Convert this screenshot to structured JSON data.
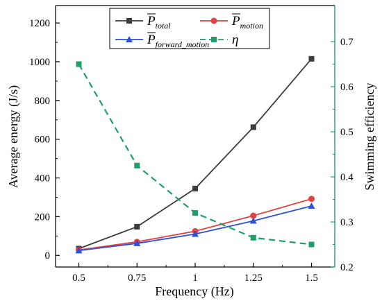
{
  "chart_data": {
    "type": "line",
    "x": [
      0.5,
      0.75,
      1,
      1.25,
      1.5
    ],
    "x_tick_labels": [
      "0.5",
      "0.75",
      "1",
      "1.25",
      "1.5"
    ],
    "xlabel": "Frequency (Hz)",
    "xlim": [
      0.4,
      1.6
    ],
    "ylabel_left": "Average energy (J/s)",
    "ylim_left": [
      -60,
      1290
    ],
    "yticks_left": [
      0,
      200,
      400,
      600,
      800,
      1000,
      1200
    ],
    "ylabel_right": "Swimming efficiency",
    "ylim_right": [
      0.2,
      0.78
    ],
    "yticks_right": [
      0.2,
      0.3,
      0.4,
      0.5,
      0.6,
      0.7
    ],
    "right_axis_color": "#1f9e6a",
    "legend_placement": "top",
    "series": [
      {
        "key": "ptotal",
        "symbol": "P",
        "subscript": "total",
        "overbar": true,
        "axis": "left",
        "color": "#3c3c3c",
        "marker": "square",
        "dash": "solid",
        "values": [
          35,
          148,
          345,
          662,
          1015
        ]
      },
      {
        "key": "pmotion",
        "symbol": "P",
        "subscript": "motion",
        "overbar": true,
        "axis": "left",
        "color": "#e0423f",
        "marker": "circle",
        "dash": "solid",
        "values": [
          28,
          70,
          125,
          205,
          292
        ]
      },
      {
        "key": "pforward",
        "symbol": "P",
        "subscript": "forward_motion",
        "overbar": true,
        "axis": "left",
        "color": "#2e4fd6",
        "marker": "triangle",
        "dash": "solid",
        "values": [
          25,
          62,
          110,
          178,
          255
        ]
      },
      {
        "key": "eta",
        "symbol": "η",
        "subscript": "",
        "overbar": false,
        "axis": "right",
        "color": "#1f9e6a",
        "marker": "square",
        "dash": "dashed",
        "values": [
          0.65,
          0.425,
          0.32,
          0.265,
          0.25
        ]
      }
    ]
  }
}
